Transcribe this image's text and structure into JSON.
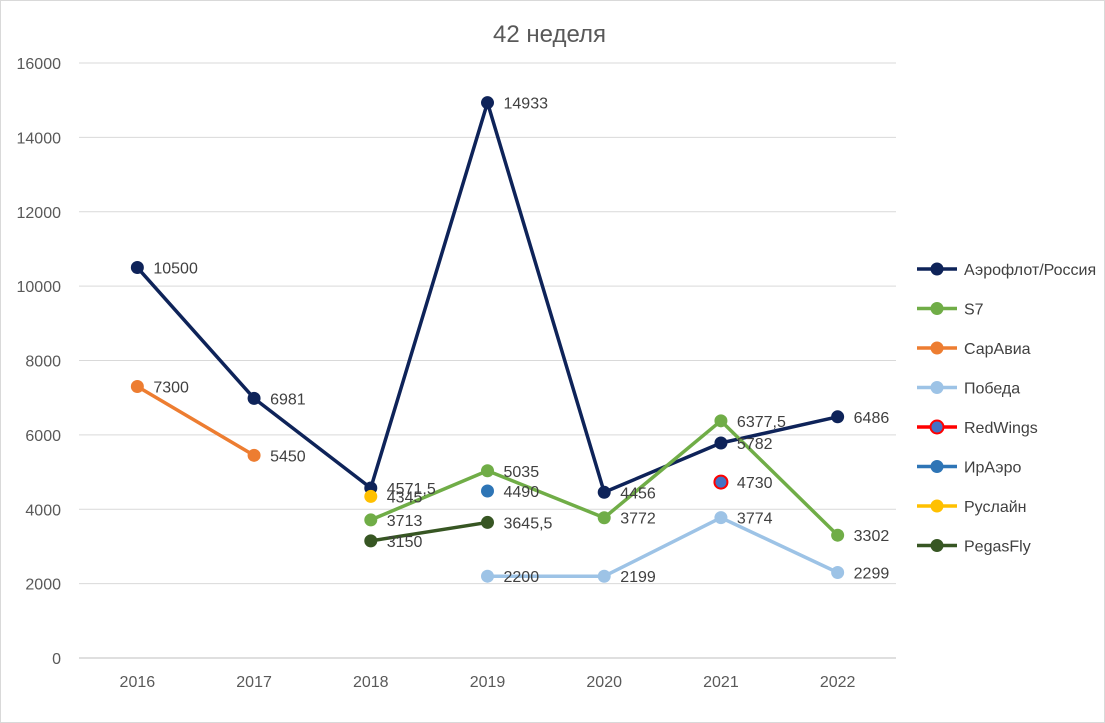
{
  "chart_data": {
    "type": "line",
    "title": "42 неделя",
    "xlabel": "",
    "ylabel": "",
    "categories": [
      "2016",
      "2017",
      "2018",
      "2019",
      "2020",
      "2021",
      "2022"
    ],
    "ylim": [
      0,
      16000
    ],
    "yticks": [
      0,
      2000,
      4000,
      6000,
      8000,
      10000,
      12000,
      14000,
      16000
    ],
    "grid": "horizontal",
    "legend_position": "right",
    "series": [
      {
        "name": "Аэрофлот/Россия",
        "color": "#0e2359",
        "values": [
          10500,
          6981,
          4571.5,
          14933,
          4456,
          5782,
          6486
        ],
        "labels": [
          "10500",
          "6981",
          "4571,5",
          "14933",
          "4456",
          "5782",
          "6486"
        ]
      },
      {
        "name": "S7",
        "color": "#70ad47",
        "values": [
          null,
          null,
          3713,
          5035,
          3772,
          6377.5,
          3302
        ],
        "labels": [
          "",
          "",
          "3713",
          "5035",
          "3772",
          "6377,5",
          "3302"
        ]
      },
      {
        "name": "СарАвиа",
        "color": "#ed7d31",
        "values": [
          7300,
          5450,
          null,
          null,
          null,
          null,
          null
        ],
        "labels": [
          "7300",
          "5450",
          "",
          "",
          "",
          "",
          ""
        ]
      },
      {
        "name": "Победа",
        "color": "#9dc3e6",
        "values": [
          null,
          null,
          null,
          2200,
          2199,
          3774,
          2299
        ],
        "labels": [
          "",
          "",
          "",
          "2200",
          "2199",
          "3774",
          "2299"
        ]
      },
      {
        "name": "RedWings",
        "color": "#ff0000",
        "marker_color": "#4472c4",
        "values": [
          null,
          null,
          null,
          null,
          null,
          4730,
          null
        ],
        "labels": [
          "",
          "",
          "",
          "",
          "",
          "4730",
          ""
        ]
      },
      {
        "name": "ИрАэро",
        "color": "#2e75b6",
        "values": [
          null,
          null,
          null,
          4490,
          null,
          null,
          null
        ],
        "labels": [
          "",
          "",
          "",
          "4490",
          "",
          "",
          ""
        ]
      },
      {
        "name": "Руслайн",
        "color": "#ffc000",
        "values": [
          null,
          null,
          4345,
          null,
          null,
          null,
          null
        ],
        "labels": [
          "",
          "",
          "4345",
          "",
          "",
          "",
          ""
        ]
      },
      {
        "name": "PegasFly",
        "color": "#375623",
        "values": [
          null,
          null,
          3150,
          3645.5,
          null,
          null,
          null
        ],
        "labels": [
          "",
          "",
          "3150",
          "3645,5",
          "",
          "",
          ""
        ]
      }
    ]
  }
}
